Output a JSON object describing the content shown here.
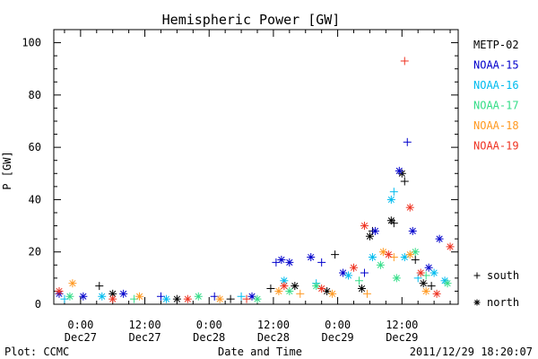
{
  "chart_data": {
    "type": "scatter",
    "title": "Hemispheric Power [GW]",
    "ylabel": "P [GW]",
    "xlabel": "Date and Time",
    "ylim": [
      0,
      105
    ],
    "xlim": [
      "2011-12-26 19:00",
      "2011-12-29 22:30"
    ],
    "y_ticks": [
      0,
      20,
      40,
      60,
      80,
      100
    ],
    "x_ticks": [
      {
        "x": "2011-12-27 00:00",
        "time": "0:00",
        "date": "Dec27"
      },
      {
        "x": "2011-12-27 12:00",
        "time": "12:00",
        "date": "Dec27"
      },
      {
        "x": "2011-12-28 00:00",
        "time": "0:00",
        "date": "Dec28"
      },
      {
        "x": "2011-12-28 12:00",
        "time": "12:00",
        "date": "Dec28"
      },
      {
        "x": "2011-12-29 00:00",
        "time": "0:00",
        "date": "Dec29"
      },
      {
        "x": "2011-12-29 12:00",
        "time": "12:00",
        "date": "Dec29"
      }
    ],
    "grid": false,
    "legend_position": "right",
    "marker_legend": [
      {
        "symbol": "+",
        "label": "south"
      },
      {
        "symbol": "*",
        "label": "north"
      }
    ],
    "series": [
      {
        "name": "METP-02",
        "color": "#000000",
        "points": [
          {
            "x": "2011-12-27 03:30",
            "y": 7,
            "m": "+"
          },
          {
            "x": "2011-12-27 06:00",
            "y": 4,
            "m": "*"
          },
          {
            "x": "2011-12-27 18:00",
            "y": 2,
            "m": "*"
          },
          {
            "x": "2011-12-28 04:00",
            "y": 2,
            "m": "+"
          },
          {
            "x": "2011-12-28 11:30",
            "y": 6,
            "m": "+"
          },
          {
            "x": "2011-12-28 16:00",
            "y": 7,
            "m": "*"
          },
          {
            "x": "2011-12-28 22:00",
            "y": 5,
            "m": "*"
          },
          {
            "x": "2011-12-28 23:30",
            "y": 19,
            "m": "+"
          },
          {
            "x": "2011-12-29 04:30",
            "y": 6,
            "m": "*"
          },
          {
            "x": "2011-12-29 06:00",
            "y": 26,
            "m": "*"
          },
          {
            "x": "2011-12-29 06:30",
            "y": 28,
            "m": "+"
          },
          {
            "x": "2011-12-29 10:00",
            "y": 32,
            "m": "*"
          },
          {
            "x": "2011-12-29 10:30",
            "y": 31,
            "m": "+"
          },
          {
            "x": "2011-12-29 12:00",
            "y": 50,
            "m": "*"
          },
          {
            "x": "2011-12-29 12:30",
            "y": 47,
            "m": "+"
          },
          {
            "x": "2011-12-29 14:30",
            "y": 17,
            "m": "+"
          },
          {
            "x": "2011-12-29 16:00",
            "y": 8,
            "m": "*"
          },
          {
            "x": "2011-12-29 17:30",
            "y": 7,
            "m": "+"
          }
        ]
      },
      {
        "name": "NOAA-15",
        "color": "#0000cc",
        "points": [
          {
            "x": "2011-12-26 20:00",
            "y": 4,
            "m": "*"
          },
          {
            "x": "2011-12-27 00:30",
            "y": 3,
            "m": "*"
          },
          {
            "x": "2011-12-27 08:00",
            "y": 4,
            "m": "*"
          },
          {
            "x": "2011-12-27 15:00",
            "y": 3,
            "m": "+"
          },
          {
            "x": "2011-12-28 01:00",
            "y": 3,
            "m": "+"
          },
          {
            "x": "2011-12-28 08:00",
            "y": 3,
            "m": "*"
          },
          {
            "x": "2011-12-28 12:30",
            "y": 16,
            "m": "+"
          },
          {
            "x": "2011-12-28 13:30",
            "y": 17,
            "m": "*"
          },
          {
            "x": "2011-12-28 15:00",
            "y": 16,
            "m": "*"
          },
          {
            "x": "2011-12-28 19:00",
            "y": 18,
            "m": "*"
          },
          {
            "x": "2011-12-28 21:00",
            "y": 16,
            "m": "+"
          },
          {
            "x": "2011-12-29 01:00",
            "y": 12,
            "m": "*"
          },
          {
            "x": "2011-12-29 05:00",
            "y": 12,
            "m": "+"
          },
          {
            "x": "2011-12-29 07:00",
            "y": 28,
            "m": "*"
          },
          {
            "x": "2011-12-29 11:30",
            "y": 51,
            "m": "*"
          },
          {
            "x": "2011-12-29 13:00",
            "y": 62,
            "m": "+"
          },
          {
            "x": "2011-12-29 14:00",
            "y": 28,
            "m": "*"
          },
          {
            "x": "2011-12-29 17:00",
            "y": 14,
            "m": "*"
          },
          {
            "x": "2011-12-29 19:00",
            "y": 25,
            "m": "*"
          }
        ]
      },
      {
        "name": "NOAA-16",
        "color": "#00bbee",
        "points": [
          {
            "x": "2011-12-26 21:00",
            "y": 2,
            "m": "+"
          },
          {
            "x": "2011-12-27 04:00",
            "y": 3,
            "m": "*"
          },
          {
            "x": "2011-12-27 16:00",
            "y": 2,
            "m": "*"
          },
          {
            "x": "2011-12-28 06:00",
            "y": 3,
            "m": "+"
          },
          {
            "x": "2011-12-28 14:00",
            "y": 9,
            "m": "*"
          },
          {
            "x": "2011-12-28 20:00",
            "y": 8,
            "m": "+"
          },
          {
            "x": "2011-12-29 02:00",
            "y": 11,
            "m": "*"
          },
          {
            "x": "2011-12-29 06:30",
            "y": 18,
            "m": "*"
          },
          {
            "x": "2011-12-29 10:00",
            "y": 40,
            "m": "*"
          },
          {
            "x": "2011-12-29 10:30",
            "y": 43,
            "m": "+"
          },
          {
            "x": "2011-12-29 12:30",
            "y": 18,
            "m": "*"
          },
          {
            "x": "2011-12-29 15:00",
            "y": 10,
            "m": "+"
          },
          {
            "x": "2011-12-29 18:00",
            "y": 12,
            "m": "*"
          },
          {
            "x": "2011-12-29 20:00",
            "y": 9,
            "m": "*"
          }
        ]
      },
      {
        "name": "NOAA-17",
        "color": "#33dd88",
        "points": [
          {
            "x": "2011-12-26 22:00",
            "y": 3,
            "m": "*"
          },
          {
            "x": "2011-12-27 10:00",
            "y": 2,
            "m": "+"
          },
          {
            "x": "2011-12-27 22:00",
            "y": 3,
            "m": "*"
          },
          {
            "x": "2011-12-28 09:00",
            "y": 2,
            "m": "*"
          },
          {
            "x": "2011-12-28 15:00",
            "y": 5,
            "m": "*"
          },
          {
            "x": "2011-12-28 20:00",
            "y": 7,
            "m": "*"
          },
          {
            "x": "2011-12-29 04:00",
            "y": 9,
            "m": "+"
          },
          {
            "x": "2011-12-29 08:00",
            "y": 15,
            "m": "*"
          },
          {
            "x": "2011-12-29 11:00",
            "y": 10,
            "m": "*"
          },
          {
            "x": "2011-12-29 14:30",
            "y": 20,
            "m": "*"
          },
          {
            "x": "2011-12-29 16:30",
            "y": 11,
            "m": "+"
          },
          {
            "x": "2011-12-29 20:30",
            "y": 8,
            "m": "*"
          }
        ]
      },
      {
        "name": "NOAA-18",
        "color": "#ff9922",
        "points": [
          {
            "x": "2011-12-26 22:30",
            "y": 8,
            "m": "*"
          },
          {
            "x": "2011-12-27 11:00",
            "y": 3,
            "m": "*"
          },
          {
            "x": "2011-12-28 02:00",
            "y": 2,
            "m": "*"
          },
          {
            "x": "2011-12-28 13:00",
            "y": 5,
            "m": "*"
          },
          {
            "x": "2011-12-28 17:00",
            "y": 4,
            "m": "+"
          },
          {
            "x": "2011-12-28 23:00",
            "y": 4,
            "m": "*"
          },
          {
            "x": "2011-12-29 05:30",
            "y": 4,
            "m": "+"
          },
          {
            "x": "2011-12-29 08:30",
            "y": 20,
            "m": "*"
          },
          {
            "x": "2011-12-29 10:30",
            "y": 18,
            "m": "+"
          },
          {
            "x": "2011-12-29 13:30",
            "y": 19,
            "m": "*"
          },
          {
            "x": "2011-12-29 16:30",
            "y": 5,
            "m": "*"
          }
        ]
      },
      {
        "name": "NOAA-19",
        "color": "#ee3322",
        "points": [
          {
            "x": "2011-12-26 20:00",
            "y": 5,
            "m": "*"
          },
          {
            "x": "2011-12-27 06:00",
            "y": 2,
            "m": "*"
          },
          {
            "x": "2011-12-27 20:00",
            "y": 2,
            "m": "*"
          },
          {
            "x": "2011-12-28 07:00",
            "y": 2,
            "m": "+"
          },
          {
            "x": "2011-12-28 14:00",
            "y": 7,
            "m": "*"
          },
          {
            "x": "2011-12-28 21:00",
            "y": 6,
            "m": "*"
          },
          {
            "x": "2011-12-29 03:00",
            "y": 14,
            "m": "*"
          },
          {
            "x": "2011-12-29 05:00",
            "y": 30,
            "m": "*"
          },
          {
            "x": "2011-12-29 09:30",
            "y": 19,
            "m": "*"
          },
          {
            "x": "2011-12-29 12:30",
            "y": 93,
            "m": "+"
          },
          {
            "x": "2011-12-29 13:30",
            "y": 37,
            "m": "*"
          },
          {
            "x": "2011-12-29 15:30",
            "y": 12,
            "m": "*"
          },
          {
            "x": "2011-12-29 18:30",
            "y": 4,
            "m": "*"
          },
          {
            "x": "2011-12-29 21:00",
            "y": 22,
            "m": "*"
          }
        ]
      }
    ]
  },
  "footer": {
    "left": "Plot: CCMC",
    "right": "2011/12/29 18:20:07"
  }
}
